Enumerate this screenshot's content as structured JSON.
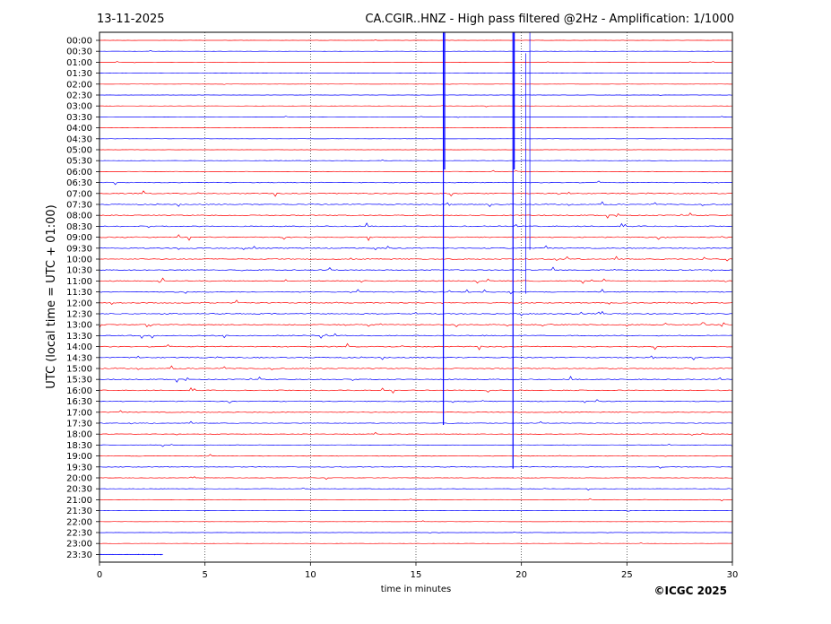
{
  "header": {
    "date": "13-11-2025",
    "title": "CA.CGIR..HNZ - High pass filtered @2Hz - Amplification: 1/1000"
  },
  "footer": {
    "copyright": "©ICGC 2025"
  },
  "chart_data": {
    "type": "line",
    "title": "CA.CGIR..HNZ - High pass filtered @2Hz - Amplification: 1/1000",
    "xlabel": "time in minutes",
    "ylabel": "UTC (local time = UTC + 01:00)",
    "xlim": [
      0,
      30
    ],
    "x_ticks": [
      0,
      5,
      10,
      15,
      20,
      25,
      30
    ],
    "x_ticks_labels": [
      "0",
      "5",
      "10",
      "15",
      "20",
      "25",
      "30"
    ],
    "grid": "vertical dotted lines at 5-minute intervals",
    "y_ticks_labels": [
      "00:00",
      "00:30",
      "01:00",
      "01:30",
      "02:00",
      "02:30",
      "03:00",
      "03:30",
      "04:00",
      "04:30",
      "05:00",
      "05:30",
      "06:00",
      "06:30",
      "07:00",
      "07:30",
      "08:00",
      "08:30",
      "09:00",
      "09:30",
      "10:00",
      "10:30",
      "11:00",
      "11:30",
      "12:00",
      "12:30",
      "13:00",
      "13:30",
      "14:00",
      "14:30",
      "15:00",
      "15:30",
      "16:00",
      "16:30",
      "17:00",
      "17:30",
      "18:00",
      "18:30",
      "19:00",
      "19:30",
      "20:00",
      "20:30",
      "21:00",
      "21:30",
      "22:00",
      "22:30",
      "23:00",
      "23:30"
    ],
    "trace_colors": [
      "#ff0000",
      "#0000ff"
    ],
    "trace_color_pattern": "alternating red / blue per 30-minute row, starting with red at 00:00",
    "trace_end": "23:33",
    "activity_level": [
      0.2,
      0.25,
      0.25,
      0.25,
      0.3,
      0.3,
      0.3,
      0.3,
      0.3,
      0.25,
      0.3,
      0.35,
      0.45,
      0.75,
      0.85,
      0.9,
      0.9,
      0.95,
      0.95,
      0.95,
      0.95,
      0.95,
      0.95,
      0.95,
      0.9,
      0.95,
      0.95,
      0.95,
      0.95,
      0.95,
      0.9,
      0.9,
      0.85,
      0.8,
      0.7,
      0.6,
      0.55,
      0.55,
      0.6,
      0.6,
      0.5,
      0.4,
      0.35,
      0.3,
      0.3,
      0.25,
      0.25,
      0.25
    ],
    "events": [
      {
        "label": "vertical spike",
        "x_minute": 16.3,
        "start": "00:00",
        "end": "17:30",
        "amplitude": 1.0,
        "color": "#0000ff"
      },
      {
        "label": "vertical spike",
        "x_minute": 19.6,
        "start": "00:00",
        "end": "19:30",
        "amplitude": 1.0,
        "color": "#0000ff"
      },
      {
        "label": "vertical spike",
        "x_minute": 20.2,
        "start": "01:00",
        "end": "11:30",
        "amplitude": 0.7,
        "color": "#0000ff"
      },
      {
        "label": "vertical spike",
        "x_minute": 20.4,
        "start": "00:00",
        "end": "09:30",
        "amplitude": 0.7,
        "color": "#0000ff"
      }
    ]
  }
}
